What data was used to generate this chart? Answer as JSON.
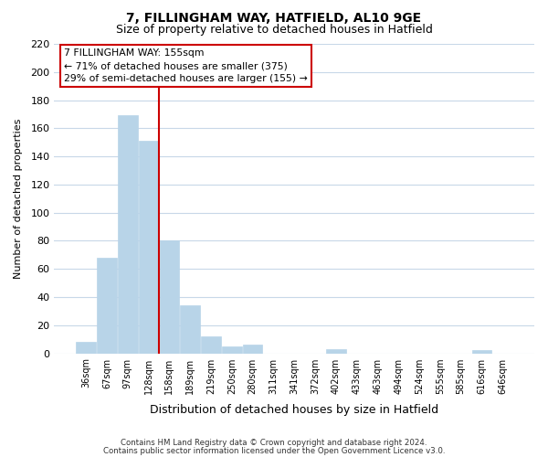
{
  "title": "7, FILLINGHAM WAY, HATFIELD, AL10 9GE",
  "subtitle": "Size of property relative to detached houses in Hatfield",
  "xlabel": "Distribution of detached houses by size in Hatfield",
  "ylabel": "Number of detached properties",
  "bar_labels": [
    "36sqm",
    "67sqm",
    "97sqm",
    "128sqm",
    "158sqm",
    "189sqm",
    "219sqm",
    "250sqm",
    "280sqm",
    "311sqm",
    "341sqm",
    "372sqm",
    "402sqm",
    "433sqm",
    "463sqm",
    "494sqm",
    "524sqm",
    "555sqm",
    "585sqm",
    "616sqm",
    "646sqm"
  ],
  "bar_values": [
    8,
    68,
    169,
    151,
    80,
    34,
    12,
    5,
    6,
    0,
    0,
    0,
    3,
    0,
    0,
    0,
    0,
    0,
    0,
    2,
    0
  ],
  "bar_color": "#b8d4e8",
  "bar_edge_color": "#b8d4e8",
  "highlight_line_color": "#cc0000",
  "highlight_line_index": 4,
  "ylim": [
    0,
    220
  ],
  "yticks": [
    0,
    20,
    40,
    60,
    80,
    100,
    120,
    140,
    160,
    180,
    200,
    220
  ],
  "annotation_title": "7 FILLINGHAM WAY: 155sqm",
  "annotation_line1": "← 71% of detached houses are smaller (375)",
  "annotation_line2": "29% of semi-detached houses are larger (155) →",
  "annotation_box_color": "#ffffff",
  "annotation_box_edgecolor": "#cc0000",
  "footnote1": "Contains HM Land Registry data © Crown copyright and database right 2024.",
  "footnote2": "Contains public sector information licensed under the Open Government Licence v3.0.",
  "background_color": "#ffffff",
  "grid_color": "#c8d8e8",
  "title_fontsize": 10,
  "subtitle_fontsize": 9
}
